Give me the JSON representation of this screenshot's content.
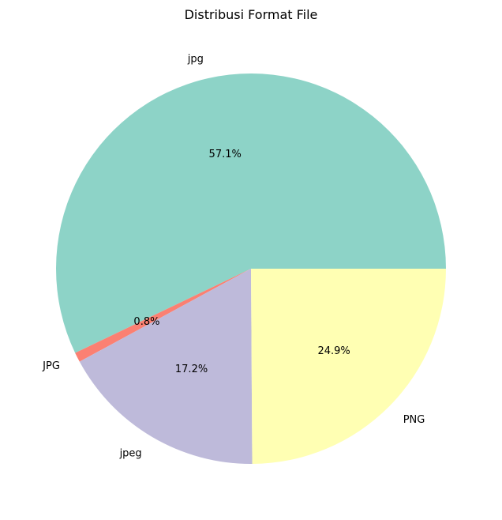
{
  "chart_data": {
    "type": "pie",
    "title": "Distribusi Format File",
    "categories": [
      "jpg",
      "JPG",
      "jpeg",
      "PNG"
    ],
    "values": [
      57.1,
      0.8,
      17.2,
      24.9
    ],
    "labels": [
      "57.1%",
      "0.8%",
      "17.2%",
      "24.9%"
    ],
    "colors": [
      "#8dd3c7",
      "#fb8072",
      "#bebada",
      "#ffffb3"
    ],
    "start_angle_deg": 0,
    "direction": "counterclockwise",
    "legend": "none"
  }
}
